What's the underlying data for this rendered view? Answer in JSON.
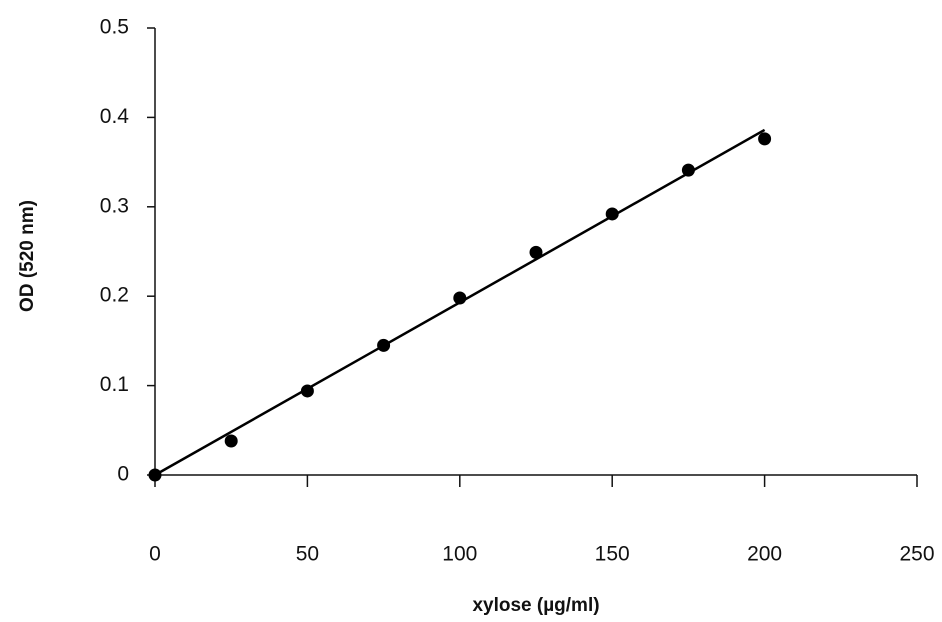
{
  "chart_data": {
    "type": "scatter",
    "x_label": "xylose (µg/ml)",
    "y_label": "OD (520 nm)",
    "series": [
      {
        "color": "#000000",
        "x": [
          0,
          25,
          50,
          75,
          100,
          125,
          150,
          175,
          200
        ],
        "values": [
          0,
          0.038,
          0.094,
          0.145,
          0.198,
          0.249,
          0.292,
          0.341,
          0.376
        ]
      }
    ],
    "trendline": {
      "color": "#000000",
      "x": [
        0,
        200
      ],
      "y": [
        0,
        0.386
      ]
    },
    "xlim": [
      0,
      250
    ],
    "xticks": [
      0,
      50,
      100,
      150,
      200,
      250
    ],
    "ylim": [
      0,
      0.5
    ],
    "yticks": [
      0,
      0.1,
      0.2,
      0.3,
      0.4,
      0.5
    ],
    "grid": false
  }
}
